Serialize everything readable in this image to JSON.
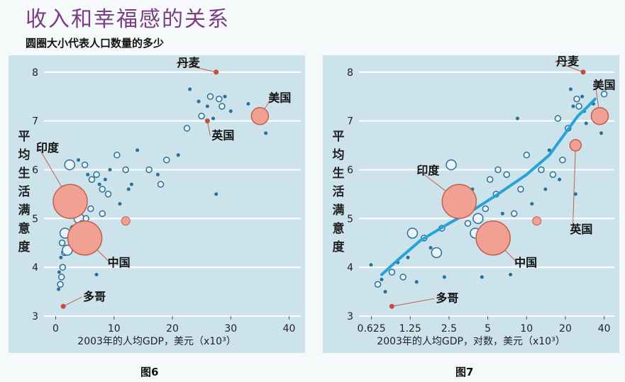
{
  "header": {
    "title": "收入和幸福感的关系",
    "subtitle": "圆圈大小代表人口数量的多少"
  },
  "captions": [
    "图6",
    "图7"
  ],
  "colors": {
    "panel_bg": "#cde3ec",
    "gridline": "#ffffff",
    "dot": "#2b7096",
    "bubble_fill": "#eaf4f8",
    "bubble_stroke": "#2b7096",
    "highlight_fill": "#f1a194",
    "highlight_stroke": "#c45d4c",
    "highlight_small": "#c94b3b",
    "curve": "#27a3d9",
    "title": "#7a3d86"
  },
  "chart_data": [
    {
      "type": "scatter",
      "title": "图6",
      "xlabel": "2003年的人均GDP，美元（x10³）",
      "ylabel": "平均生活满意度",
      "xscale": "linear",
      "xlim": [
        -2,
        42
      ],
      "ylim": [
        3,
        8.2
      ],
      "xticks": [
        0,
        10,
        20,
        30,
        40
      ],
      "xtick_labels": [
        "0",
        "10",
        "20",
        "30",
        "40"
      ],
      "yticks": [
        3,
        4,
        5,
        6,
        7,
        8
      ],
      "ytick_labels": [
        "3",
        "4",
        "5",
        "6",
        "7",
        "8"
      ],
      "grid": "horizontal",
      "highlighted": [
        {
          "label": "丹麦",
          "x": 27.5,
          "y": 8.0,
          "size": "small"
        },
        {
          "label": "美国",
          "x": 35,
          "y": 7.1,
          "size": "large"
        },
        {
          "label": "英国",
          "x": 26,
          "y": 7.0,
          "size": "small"
        },
        {
          "label": "印度",
          "x": 2.5,
          "y": 5.35,
          "size": "xlarge"
        },
        {
          "label": "中国",
          "x": 5,
          "y": 4.6,
          "size": "xlarge"
        },
        {
          "label": "多哥",
          "x": 1.3,
          "y": 3.2,
          "size": "small"
        }
      ],
      "points": [
        {
          "x": 0.5,
          "y": 3.55,
          "s": "dot"
        },
        {
          "x": 0.8,
          "y": 3.65,
          "s": "circle"
        },
        {
          "x": 1.0,
          "y": 3.8,
          "s": "circle"
        },
        {
          "x": 0.6,
          "y": 3.9,
          "s": "dot"
        },
        {
          "x": 1.2,
          "y": 4.0,
          "s": "circle"
        },
        {
          "x": 0.9,
          "y": 4.2,
          "s": "dot"
        },
        {
          "x": 1.5,
          "y": 4.3,
          "s": "circle"
        },
        {
          "x": 2.0,
          "y": 4.35,
          "s": "bubble"
        },
        {
          "x": 1.1,
          "y": 4.5,
          "s": "circle"
        },
        {
          "x": 1.6,
          "y": 4.7,
          "s": "bubble"
        },
        {
          "x": 2.4,
          "y": 4.6,
          "s": "dot"
        },
        {
          "x": 3.0,
          "y": 4.8,
          "s": "circle"
        },
        {
          "x": 3.6,
          "y": 4.75,
          "s": "bubble"
        },
        {
          "x": 4.0,
          "y": 5.0,
          "s": "bubble"
        },
        {
          "x": 4.5,
          "y": 4.9,
          "s": "circle"
        },
        {
          "x": 5.2,
          "y": 5.0,
          "s": "circle"
        },
        {
          "x": 5.6,
          "y": 4.7,
          "s": "bubble"
        },
        {
          "x": 6.0,
          "y": 5.2,
          "s": "circle"
        },
        {
          "x": 3.2,
          "y": 5.3,
          "s": "dot"
        },
        {
          "x": 2.8,
          "y": 5.5,
          "s": "circle"
        },
        {
          "x": 3.8,
          "y": 5.55,
          "s": "dot"
        },
        {
          "x": 2.4,
          "y": 6.1,
          "s": "bubble"
        },
        {
          "x": 3.9,
          "y": 6.2,
          "s": "dot"
        },
        {
          "x": 5.0,
          "y": 6.1,
          "s": "circle"
        },
        {
          "x": 5.5,
          "y": 5.9,
          "s": "dot"
        },
        {
          "x": 6.2,
          "y": 5.8,
          "s": "circle"
        },
        {
          "x": 7.0,
          "y": 5.9,
          "s": "circle"
        },
        {
          "x": 7.5,
          "y": 5.7,
          "s": "dot"
        },
        {
          "x": 8.0,
          "y": 5.6,
          "s": "circle"
        },
        {
          "x": 8.5,
          "y": 5.8,
          "s": "dot"
        },
        {
          "x": 9.0,
          "y": 5.5,
          "s": "circle"
        },
        {
          "x": 9.3,
          "y": 6.0,
          "s": "dot"
        },
        {
          "x": 10.5,
          "y": 6.3,
          "s": "circle"
        },
        {
          "x": 11.0,
          "y": 5.3,
          "s": "dot"
        },
        {
          "x": 12.0,
          "y": 6.0,
          "s": "circle"
        },
        {
          "x": 12.5,
          "y": 5.6,
          "s": "dot"
        },
        {
          "x": 13.0,
          "y": 5.7,
          "s": "dot"
        },
        {
          "x": 14.0,
          "y": 6.4,
          "s": "dot"
        },
        {
          "x": 16.0,
          "y": 6.0,
          "s": "circle"
        },
        {
          "x": 8.0,
          "y": 5.1,
          "s": "circle"
        },
        {
          "x": 7.0,
          "y": 3.85,
          "s": "dot"
        },
        {
          "x": 12.0,
          "y": 4.95,
          "s": "highlight"
        },
        {
          "x": 17.5,
          "y": 5.9,
          "s": "dot"
        },
        {
          "x": 18.0,
          "y": 5.7,
          "s": "circle"
        },
        {
          "x": 19.0,
          "y": 6.2,
          "s": "circle"
        },
        {
          "x": 21.0,
          "y": 6.3,
          "s": "dot"
        },
        {
          "x": 22.5,
          "y": 6.85,
          "s": "circle"
        },
        {
          "x": 23.0,
          "y": 7.65,
          "s": "dot"
        },
        {
          "x": 24.5,
          "y": 7.4,
          "s": "dot"
        },
        {
          "x": 25.0,
          "y": 7.1,
          "s": "circle"
        },
        {
          "x": 26.0,
          "y": 7.3,
          "s": "dot"
        },
        {
          "x": 26.5,
          "y": 7.5,
          "s": "circle"
        },
        {
          "x": 27.0,
          "y": 7.05,
          "s": "dot"
        },
        {
          "x": 28.0,
          "y": 7.45,
          "s": "circle"
        },
        {
          "x": 28.5,
          "y": 7.3,
          "s": "circle"
        },
        {
          "x": 29.0,
          "y": 7.5,
          "s": "dot"
        },
        {
          "x": 30.0,
          "y": 7.2,
          "s": "dot"
        },
        {
          "x": 27.5,
          "y": 5.5,
          "s": "dot"
        },
        {
          "x": 33.0,
          "y": 7.35,
          "s": "dot"
        },
        {
          "x": 36.0,
          "y": 6.75,
          "s": "dot"
        }
      ]
    },
    {
      "type": "scatter",
      "title": "图7",
      "xlabel": "2003年的人均GDP，对数，美元（x10³）",
      "ylabel": "平均生活满意度",
      "xscale": "log",
      "xlim": [
        0.5,
        48
      ],
      "ylim": [
        3,
        8.2
      ],
      "xticks": [
        0.625,
        1.25,
        2.5,
        5,
        10,
        20,
        40
      ],
      "xtick_labels": [
        "0.625",
        "1.25",
        "2.5",
        "5",
        "10",
        "20",
        "40"
      ],
      "yticks": [
        3,
        4,
        5,
        6,
        7,
        8
      ],
      "ytick_labels": [
        "3",
        "4",
        "5",
        "6",
        "7",
        "8"
      ],
      "grid": "horizontal",
      "trend_line": {
        "x": [
          0.75,
          1.0,
          1.5,
          2.5,
          4.0,
          6.0,
          10.0,
          15.0,
          20.0,
          25.0,
          30.0,
          34.0
        ],
        "y": [
          3.85,
          4.15,
          4.55,
          4.9,
          5.2,
          5.5,
          5.9,
          6.3,
          6.75,
          7.1,
          7.3,
          7.45
        ]
      },
      "highlighted": [
        {
          "label": "丹麦",
          "x": 27.5,
          "y": 8.0,
          "size": "small"
        },
        {
          "label": "美国",
          "x": 37,
          "y": 7.1,
          "size": "large"
        },
        {
          "label": "英国",
          "x": 24,
          "y": 6.5,
          "size": "medium"
        },
        {
          "label": "印度",
          "x": 3.0,
          "y": 5.35,
          "size": "xlarge"
        },
        {
          "label": "中国",
          "x": 5.5,
          "y": 4.6,
          "size": "xlarge"
        },
        {
          "label": "多哥",
          "x": 0.9,
          "y": 3.2,
          "size": "small"
        }
      ],
      "points": [
        {
          "x": 0.62,
          "y": 4.05,
          "s": "dot"
        },
        {
          "x": 0.7,
          "y": 3.65,
          "s": "circle"
        },
        {
          "x": 0.75,
          "y": 3.75,
          "s": "dot"
        },
        {
          "x": 0.8,
          "y": 3.5,
          "s": "dot"
        },
        {
          "x": 0.9,
          "y": 3.9,
          "s": "circle"
        },
        {
          "x": 1.0,
          "y": 4.1,
          "s": "dot"
        },
        {
          "x": 1.1,
          "y": 3.8,
          "s": "circle"
        },
        {
          "x": 1.2,
          "y": 4.2,
          "s": "dot"
        },
        {
          "x": 1.3,
          "y": 4.7,
          "s": "bubble"
        },
        {
          "x": 1.4,
          "y": 3.7,
          "s": "dot"
        },
        {
          "x": 1.6,
          "y": 4.6,
          "s": "circle"
        },
        {
          "x": 1.8,
          "y": 4.4,
          "s": "dot"
        },
        {
          "x": 2.0,
          "y": 4.3,
          "s": "bubble"
        },
        {
          "x": 2.2,
          "y": 4.8,
          "s": "circle"
        },
        {
          "x": 2.3,
          "y": 3.8,
          "s": "dot"
        },
        {
          "x": 2.6,
          "y": 6.1,
          "s": "bubble"
        },
        {
          "x": 2.5,
          "y": 5.3,
          "s": "circle"
        },
        {
          "x": 3.5,
          "y": 4.9,
          "s": "circle"
        },
        {
          "x": 3.8,
          "y": 5.6,
          "s": "dot"
        },
        {
          "x": 4.0,
          "y": 4.7,
          "s": "bubble"
        },
        {
          "x": 4.2,
          "y": 5.0,
          "s": "bubble"
        },
        {
          "x": 4.5,
          "y": 3.8,
          "s": "dot"
        },
        {
          "x": 4.8,
          "y": 5.2,
          "s": "circle"
        },
        {
          "x": 5.2,
          "y": 5.8,
          "s": "circle"
        },
        {
          "x": 5.8,
          "y": 5.5,
          "s": "circle"
        },
        {
          "x": 6.0,
          "y": 6.0,
          "s": "circle"
        },
        {
          "x": 6.5,
          "y": 5.1,
          "s": "dot"
        },
        {
          "x": 7.0,
          "y": 5.9,
          "s": "circle"
        },
        {
          "x": 7.5,
          "y": 3.85,
          "s": "dot"
        },
        {
          "x": 8.0,
          "y": 5.1,
          "s": "circle"
        },
        {
          "x": 8.5,
          "y": 7.05,
          "s": "dot"
        },
        {
          "x": 9.0,
          "y": 5.6,
          "s": "circle"
        },
        {
          "x": 10.0,
          "y": 6.3,
          "s": "circle"
        },
        {
          "x": 11.0,
          "y": 5.3,
          "s": "dot"
        },
        {
          "x": 12.0,
          "y": 4.95,
          "s": "highlight"
        },
        {
          "x": 13.0,
          "y": 6.0,
          "s": "circle"
        },
        {
          "x": 14.0,
          "y": 5.6,
          "s": "dot"
        },
        {
          "x": 15.0,
          "y": 6.4,
          "s": "dot"
        },
        {
          "x": 16.0,
          "y": 5.9,
          "s": "circle"
        },
        {
          "x": 17.5,
          "y": 7.05,
          "s": "circle"
        },
        {
          "x": 18.0,
          "y": 5.8,
          "s": "dot"
        },
        {
          "x": 19.0,
          "y": 6.2,
          "s": "circle"
        },
        {
          "x": 21.0,
          "y": 6.85,
          "s": "circle"
        },
        {
          "x": 22.0,
          "y": 7.65,
          "s": "dot"
        },
        {
          "x": 23.0,
          "y": 7.3,
          "s": "dot"
        },
        {
          "x": 24.5,
          "y": 7.45,
          "s": "circle"
        },
        {
          "x": 25.5,
          "y": 7.3,
          "s": "circle"
        },
        {
          "x": 27.0,
          "y": 7.5,
          "s": "dot"
        },
        {
          "x": 28.0,
          "y": 7.2,
          "s": "dot"
        },
        {
          "x": 24.0,
          "y": 5.5,
          "s": "dot"
        },
        {
          "x": 29.0,
          "y": 6.95,
          "s": "dot"
        },
        {
          "x": 33.0,
          "y": 7.35,
          "s": "dot"
        },
        {
          "x": 38.0,
          "y": 6.75,
          "s": "dot"
        },
        {
          "x": 40.0,
          "y": 7.55,
          "s": "circle"
        }
      ]
    }
  ]
}
